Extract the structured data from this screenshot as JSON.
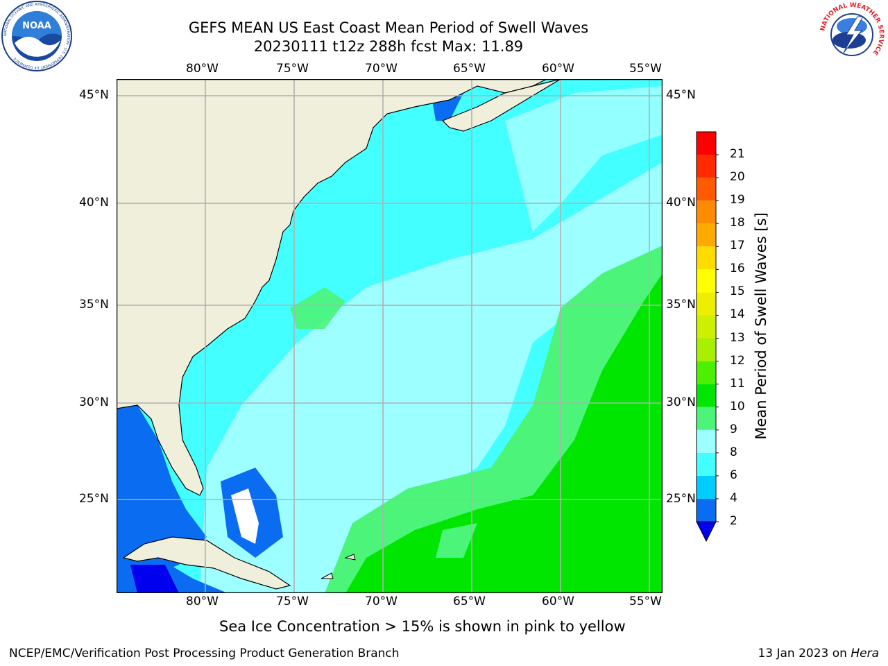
{
  "header": {
    "title_line1": "GEFS MEAN US East Coast Mean Period of Swell Waves",
    "title_line2": "20230111 t12z 288h fcst   Max: 11.89"
  },
  "logos": {
    "left": {
      "name": "noaa-logo",
      "text": "NOAA",
      "ring_text": "NATIONAL OCEANIC AND ATMOSPHERIC ADMINISTRATION · U.S. DEPARTMENT OF COMMERCE"
    },
    "right": {
      "name": "nws-logo",
      "ring_text": "NATIONAL WEATHER SERVICE"
    }
  },
  "map": {
    "lon_labels": [
      "80°W",
      "75°W",
      "70°W",
      "65°W",
      "60°W",
      "55°W"
    ],
    "lat_labels": [
      "45°N",
      "40°N",
      "35°N",
      "30°N",
      "25°N"
    ],
    "grid": true,
    "colors": {
      "land": "#efefdc",
      "coast": "#000000",
      "grid": "#b0b0b0"
    }
  },
  "colorbar": {
    "label": "Mean Period of Swell Waves [s]",
    "ticks": [
      "2",
      "4",
      "6",
      "8",
      "9",
      "10",
      "11",
      "12",
      "13",
      "14",
      "15",
      "16",
      "17",
      "18",
      "19",
      "20",
      "21"
    ],
    "colors": [
      "#0a6cf0",
      "#00ccff",
      "#44ffff",
      "#9dffff",
      "#4cf57a",
      "#00e600",
      "#4df000",
      "#a8f000",
      "#ccf000",
      "#eeee00",
      "#ffff00",
      "#ffdc00",
      "#ffaa00",
      "#ff8c00",
      "#ff5a00",
      "#ff2a00",
      "#ff0000"
    ],
    "extend_color": "#0000ee"
  },
  "caption": "Sea Ice Concentration > 15% is shown in pink to yellow",
  "footer": {
    "left": "NCEP/EMC/Verification Post Processing Product Generation Branch",
    "right_date": "13 Jan 2023 on ",
    "right_host": "Hera"
  }
}
